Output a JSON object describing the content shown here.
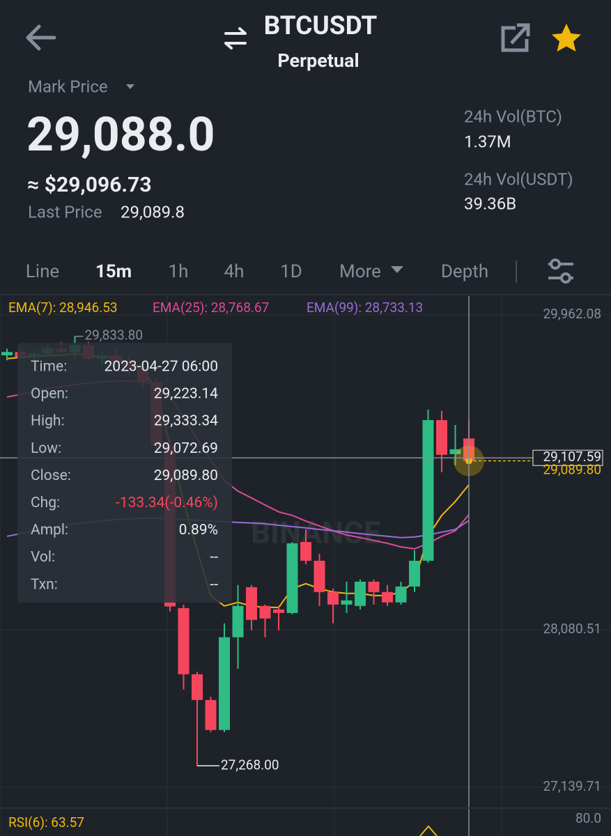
{
  "header": {
    "title": "BTCUSDT",
    "subtitle": "Perpetual"
  },
  "price": {
    "label": "Mark Price",
    "value": "29,088.0",
    "usd": "≈ $29,096.73",
    "last_label": "Last Price",
    "last_value": "29,089.8"
  },
  "stats": [
    {
      "label": "24h Vol(BTC)",
      "value": "1.37M"
    },
    {
      "label": "24h Vol(USDT)",
      "value": "39.36B"
    }
  ],
  "tabs": [
    "Line",
    "15m",
    "1h",
    "4h",
    "1D",
    "More",
    "Depth"
  ],
  "active_tab": 1,
  "chart_data": {
    "type": "candlestick",
    "up_color": "#2ebd85",
    "down_color": "#f6465d",
    "ylim": [
      27036,
      30074
    ],
    "yticks": [
      {
        "value": 29962.08,
        "label": "29,962.08"
      },
      {
        "value": 28080.51,
        "label": "28,080.51"
      },
      {
        "value": 27139.71,
        "label": "27,139.71"
      }
    ],
    "grid": true,
    "watermark": "BINANCE",
    "open": [
      29720,
      29740,
      29710,
      29730,
      29760,
      29740,
      29780,
      29700,
      29720,
      29680,
      29640,
      29560,
      29180,
      28210,
      27815,
      27661,
      27482,
      28036,
      28335,
      28223,
      28202,
      28181,
      28605,
      28493,
      28306,
      28231,
      28223,
      28368,
      28306,
      28244,
      28339,
      28493,
      29333,
      29130,
      29223.14
    ],
    "high": [
      29760,
      29770,
      29750,
      29780,
      29800,
      29833.8,
      29800,
      29740,
      29760,
      29720,
      29660,
      29580,
      29220,
      28230,
      27830,
      27680,
      28119,
      28348,
      28348,
      28231,
      28223,
      28605,
      28680,
      28535,
      28327,
      28368,
      28381,
      28381,
      28348,
      28368,
      28555,
      29396,
      29388,
      29304,
      29333.34
    ],
    "low": [
      29690,
      29700,
      29680,
      29710,
      29720,
      29700,
      29690,
      29660,
      29650,
      29600,
      29520,
      29150,
      28190,
      27724,
      27268,
      27470,
      27470,
      27848,
      28077,
      28036,
      28077,
      28173,
      28472,
      28223,
      28119,
      28181,
      28202,
      28231,
      28223,
      28231,
      28306,
      28481,
      29022,
      29063,
      29072.69
    ],
    "close": [
      29740,
      29710,
      29730,
      29760,
      29740,
      29780,
      29700,
      29720,
      29680,
      29640,
      29560,
      29180,
      28220,
      27815,
      27661,
      27482,
      28036,
      28223,
      28140,
      28148,
      28181,
      28597,
      28493,
      28306,
      28231,
      28256,
      28368,
      28306,
      28244,
      28339,
      28493,
      29333,
      29126,
      29159,
      29089.8
    ],
    "series": [
      {
        "name": "EMA(7): 28,946.53",
        "color": "#f0b90b",
        "values": [
          29700,
          29708,
          29712,
          29720,
          29720,
          29729,
          29720,
          29712,
          29704,
          29679,
          29637,
          29512,
          29180,
          28847,
          28556,
          28285,
          28223,
          28244,
          28223,
          28214,
          28214,
          28327,
          28356,
          28327,
          28306,
          28298,
          28298,
          28285,
          28285,
          28306,
          28368,
          28639,
          28764,
          28847,
          28946.53
        ]
      },
      {
        "name": "EMA(25): 28,768.67",
        "color": "#e0489a",
        "values": [
          29471,
          29487,
          29504,
          29521,
          29533,
          29546,
          29554,
          29562,
          29566,
          29566,
          29562,
          29546,
          29471,
          29346,
          29221,
          29096,
          28972,
          28909,
          28868,
          28826,
          28785,
          28764,
          28730,
          28701,
          28672,
          28647,
          28631,
          28614,
          28597,
          28576,
          28564,
          28597,
          28639,
          28672,
          28768.67
        ]
      },
      {
        "name": "EMA(99): 28,733.13",
        "color": "#9b6bd6",
        "values": [
          28639,
          28655,
          28672,
          28689,
          28701,
          28714,
          28722,
          28730,
          28739,
          28743,
          28747,
          28747,
          28743,
          28739,
          28735,
          28730,
          28726,
          28722,
          28718,
          28714,
          28705,
          28697,
          28689,
          28680,
          28672,
          28664,
          28655,
          28647,
          28639,
          28631,
          28635,
          28647,
          28664,
          28680,
          28733.13
        ]
      }
    ],
    "max_label": "29,833.80",
    "min_label": "27,268.00",
    "crosshair": {
      "value": 29107.59,
      "label": "29,107.59"
    },
    "last_price_label": "29,089.80",
    "tooltip": {
      "rows": [
        {
          "label": "Time:",
          "value": "2023-04-27 06:00"
        },
        {
          "label": "Open:",
          "value": "29,223.14"
        },
        {
          "label": "High:",
          "value": "29,333.34"
        },
        {
          "label": "Low:",
          "value": "29,072.69"
        },
        {
          "label": "Close:",
          "value": "29,089.80"
        },
        {
          "label": "Chg:",
          "value": "-133.34(-0.46%)",
          "color": "#f6465d"
        },
        {
          "label": "Ampl:",
          "value": "0.89%"
        },
        {
          "label": "Vol:",
          "value": "--"
        },
        {
          "label": "Txn:",
          "value": "--"
        }
      ]
    },
    "rsi": {
      "label": "RSI(6): 63.57",
      "tick": {
        "value": 80,
        "label": "80.0"
      }
    }
  }
}
